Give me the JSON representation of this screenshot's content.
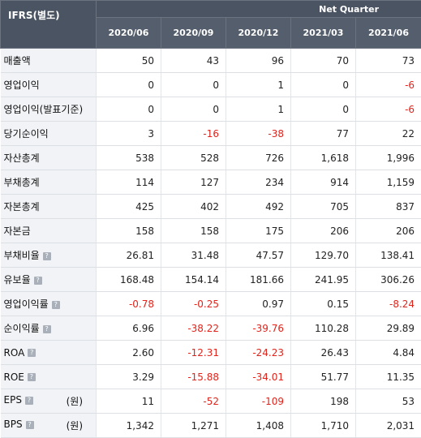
{
  "header": {
    "corner_label": "IFRS(별도)",
    "group_label": "Net Quarter",
    "periods": [
      "2020/06",
      "2020/09",
      "2020/12",
      "2021/03",
      "2021/06"
    ]
  },
  "rows": [
    {
      "label": "매출액",
      "values": [
        "50",
        "43",
        "96",
        "70",
        "73"
      ]
    },
    {
      "label": "영업이익",
      "values": [
        "0",
        "0",
        "1",
        "0",
        "-6"
      ]
    },
    {
      "label": "영업이익(발표기준)",
      "values": [
        "0",
        "0",
        "1",
        "0",
        "-6"
      ]
    },
    {
      "label": "당기순이익",
      "values": [
        "3",
        "-16",
        "-38",
        "77",
        "22"
      ]
    },
    {
      "label": "자산총계",
      "values": [
        "538",
        "528",
        "726",
        "1,618",
        "1,996"
      ]
    },
    {
      "label": "부채총계",
      "values": [
        "114",
        "127",
        "234",
        "914",
        "1,159"
      ]
    },
    {
      "label": "자본총계",
      "values": [
        "425",
        "402",
        "492",
        "705",
        "837"
      ]
    },
    {
      "label": "자본금",
      "values": [
        "158",
        "158",
        "175",
        "206",
        "206"
      ]
    },
    {
      "label": "부채비율",
      "values": [
        "26.81",
        "31.48",
        "47.57",
        "129.70",
        "138.41"
      ]
    },
    {
      "label": "유보율",
      "values": [
        "168.48",
        "154.14",
        "181.66",
        "241.95",
        "306.26"
      ]
    },
    {
      "label": "영업이익률",
      "values": [
        "-0.78",
        "-0.25",
        "0.97",
        "0.15",
        "-8.24"
      ]
    },
    {
      "label": "순이익률",
      "values": [
        "6.96",
        "-38.22",
        "-39.76",
        "110.28",
        "29.89"
      ]
    },
    {
      "label": "ROA",
      "values": [
        "2.60",
        "-12.31",
        "-24.23",
        "26.43",
        "4.84"
      ]
    },
    {
      "label": "ROE",
      "values": [
        "3.29",
        "-15.88",
        "-34.01",
        "51.77",
        "11.35"
      ]
    },
    {
      "label": "EPS",
      "unit": "(원)",
      "values": [
        "11",
        "-52",
        "-109",
        "198",
        "53"
      ]
    },
    {
      "label": "BPS",
      "unit": "(원)",
      "values": [
        "1,342",
        "1,271",
        "1,408",
        "1,710",
        "2,031"
      ]
    }
  ],
  "help_icon_text": "?",
  "colors": {
    "negative": "#e0241b",
    "header_bg": "#4b5462"
  }
}
